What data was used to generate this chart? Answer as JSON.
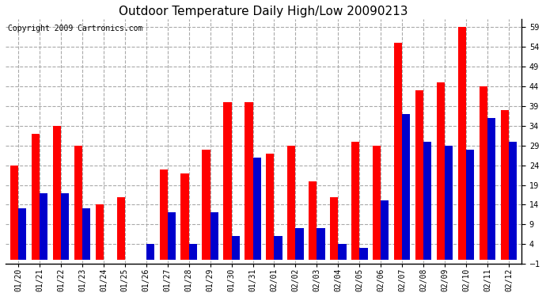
{
  "title": "Outdoor Temperature Daily High/Low 20090213",
  "copyright": "Copyright 2009 Cartronics.com",
  "labels": [
    "01/20",
    "01/21",
    "01/22",
    "01/23",
    "01/24",
    "01/25",
    "01/26",
    "01/27",
    "01/28",
    "01/29",
    "01/30",
    "01/31",
    "02/01",
    "02/02",
    "02/03",
    "02/04",
    "02/05",
    "02/06",
    "02/07",
    "02/08",
    "02/09",
    "02/10",
    "02/11",
    "02/12"
  ],
  "highs": [
    24,
    32,
    34,
    29,
    14,
    16,
    null,
    23,
    22,
    28,
    40,
    40,
    27,
    29,
    20,
    16,
    30,
    29,
    55,
    43,
    45,
    59,
    44,
    38
  ],
  "lows": [
    13,
    17,
    17,
    13,
    0,
    0,
    4,
    12,
    4,
    12,
    6,
    26,
    6,
    8,
    8,
    4,
    3,
    15,
    37,
    30,
    29,
    28,
    36,
    30
  ],
  "high_color": "#FF0000",
  "low_color": "#0000CC",
  "bg_color": "#FFFFFF",
  "grid_color": "#AAAAAA",
  "border_color": "#000000",
  "ylim": [
    -1,
    61
  ],
  "yticks": [
    -1.0,
    4.0,
    9.0,
    14.0,
    19.0,
    24.0,
    29.0,
    34.0,
    39.0,
    44.0,
    49.0,
    54.0,
    59.0
  ],
  "bar_width": 0.38,
  "figsize": [
    6.9,
    3.75
  ],
  "dpi": 100,
  "title_fontsize": 11,
  "tick_fontsize": 7,
  "copyright_fontsize": 7
}
